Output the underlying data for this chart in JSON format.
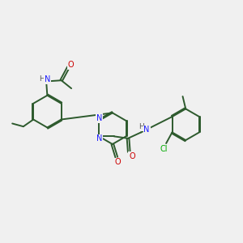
{
  "bg_color": "#f0f0f0",
  "bond_color": "#2d5a2d",
  "N_color": "#1a1aff",
  "O_color": "#cc0000",
  "Cl_color": "#00aa00",
  "line_width": 1.4,
  "dbo": 0.055,
  "xlim": [
    0,
    12
  ],
  "ylim": [
    0,
    10
  ],
  "figw": 3.0,
  "figh": 3.0,
  "fs": 7.0
}
